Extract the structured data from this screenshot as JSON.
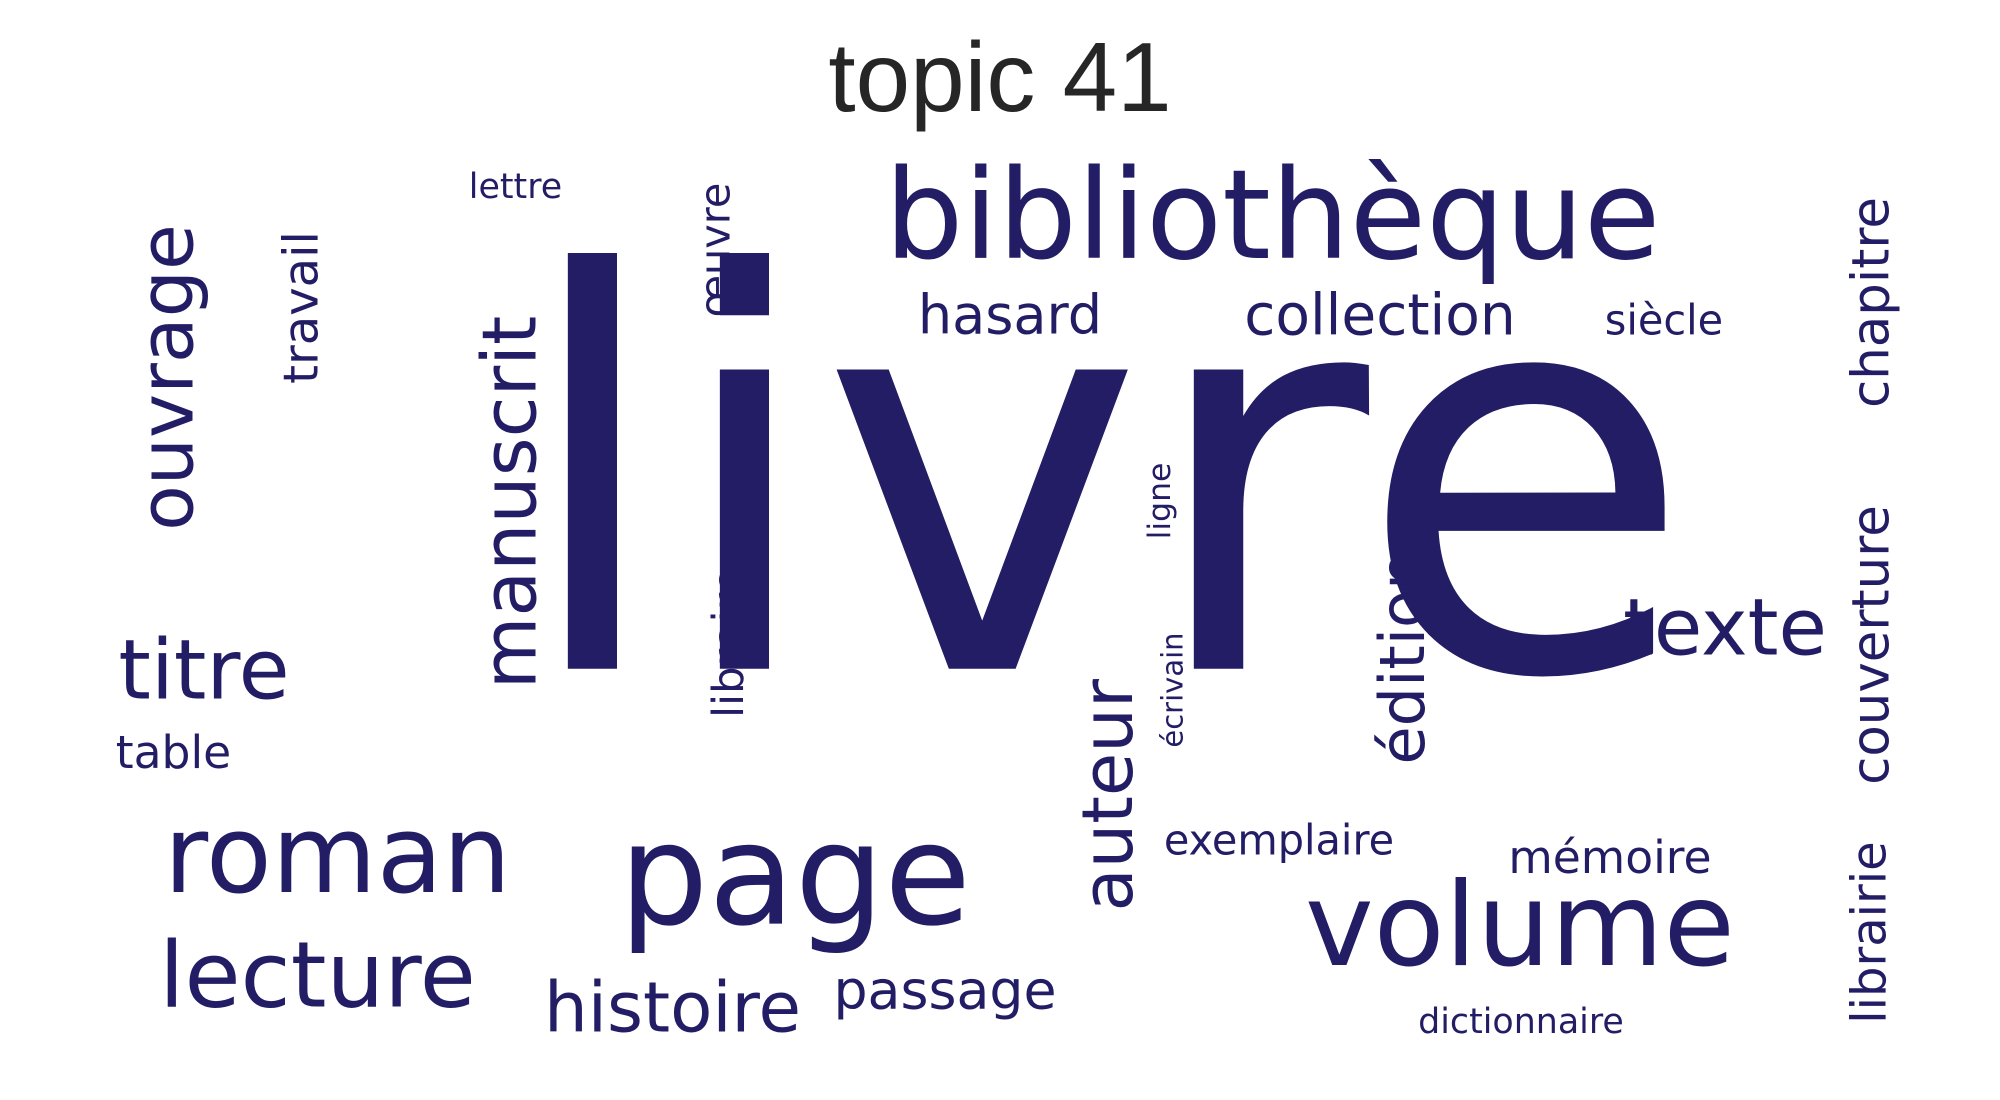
{
  "title": "topic 41",
  "color": "#221d64",
  "words": [
    "livre",
    "bibliothèque",
    "roman",
    "page",
    "volume",
    "lecture",
    "manuscrit",
    "ouvrage",
    "titre",
    "auteur",
    "chapitre",
    "couverture",
    "texte",
    "édition",
    "histoire",
    "travail",
    "librairie",
    "collection",
    "passage",
    "hasard",
    "libraire",
    "œuvre",
    "table",
    "mémoire",
    "exemplaire",
    "siècle",
    "lettre",
    "ligne",
    "écrivain",
    "dictionnaire"
  ]
}
